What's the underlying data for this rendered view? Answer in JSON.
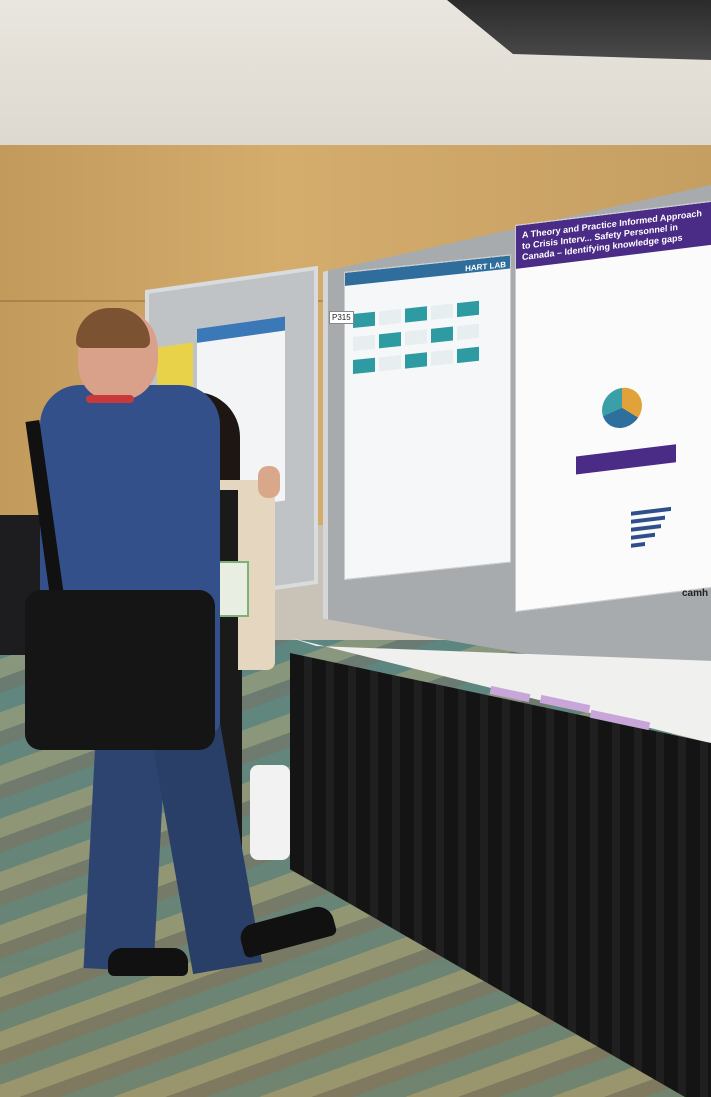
{
  "scene": {
    "description_colors": {
      "wall": "#d4ad6d",
      "poster_header_purple": "#4a2b86",
      "poster_header_teal": "#2f6e9c",
      "floor": "#6f8d86"
    }
  },
  "poster_left": {
    "header": "HART LAB",
    "board_number": "P315"
  },
  "poster_right": {
    "title": "A Theory and Practice Informed Approach to Crisis Interv... Safety Personnel in Canada – Identifying knowledge gaps",
    "logo": "camh"
  }
}
